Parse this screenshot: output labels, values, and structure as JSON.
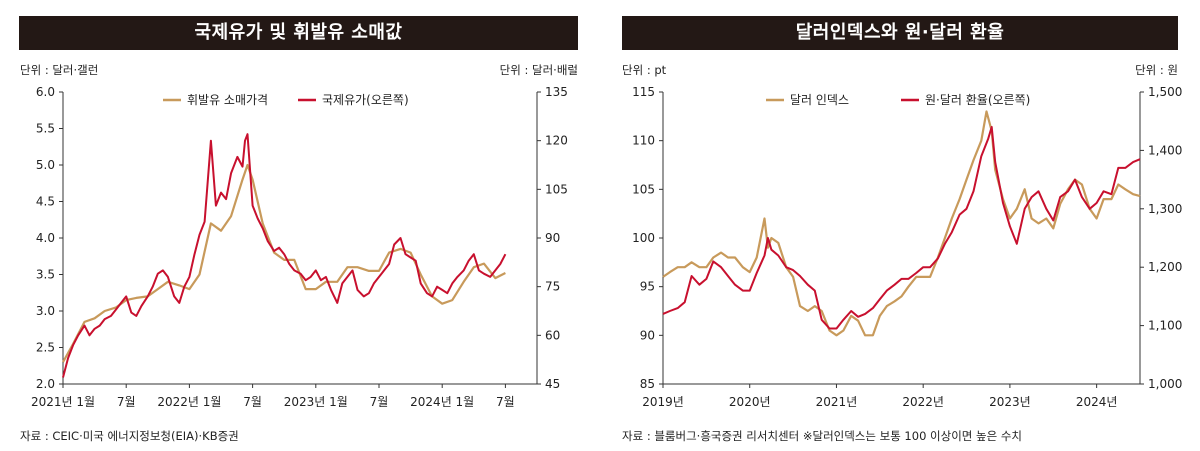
{
  "left": {
    "title": "국제유가 및 휘발유 소매값",
    "unit_left": "단위 : 달러·갤런",
    "unit_right": "단위 : 달러·배럴",
    "source": "자료 : CEIC·미국 에너지정보청(EIA)·KB증권",
    "colors": {
      "gold": "#c89a5b",
      "red": "#c8102e"
    }
  },
  "right": {
    "title": "달러인덱스와 원·달러 환율",
    "unit_left": "단위 : pt",
    "unit_right": "단위 : 원",
    "source": "자료 : 블룸버그·흥국증권 리서치센터 ※달러인덱스는 보통 100 이상이면 높은 수치",
    "colors": {
      "gold": "#c89a5b",
      "red": "#c8102e"
    }
  },
  "chart_data": [
    {
      "type": "line",
      "title": "국제유가 및 휘발유 소매값",
      "x_ticks": [
        "2021년 1월",
        "7월",
        "2022년 1월",
        "7월",
        "2023년 1월",
        "7월",
        "2024년 1월",
        "7월"
      ],
      "y_left": {
        "min": 2.0,
        "max": 6.0,
        "ticks": [
          "2.0",
          "2.5",
          "3.0",
          "3.5",
          "4.0",
          "4.5",
          "5.0",
          "5.5",
          "6.0"
        ],
        "unit": "달러·갤런"
      },
      "y_right": {
        "min": 45,
        "max": 135,
        "ticks": [
          "45",
          "60",
          "75",
          "90",
          "105",
          "120",
          "135"
        ],
        "unit": "달러·배럴"
      },
      "legend_position": "top-center",
      "series": [
        {
          "name": "휘발유 소매가격",
          "axis": "left",
          "color": "#c89a5b",
          "x": [
            2021.0,
            2021.08,
            2021.17,
            2021.25,
            2021.33,
            2021.42,
            2021.5,
            2021.58,
            2021.67,
            2021.75,
            2021.83,
            2021.92,
            2022.0,
            2022.08,
            2022.17,
            2022.25,
            2022.33,
            2022.42,
            2022.46,
            2022.5,
            2022.58,
            2022.67,
            2022.75,
            2022.83,
            2022.92,
            2023.0,
            2023.08,
            2023.17,
            2023.25,
            2023.33,
            2023.42,
            2023.5,
            2023.58,
            2023.67,
            2023.75,
            2023.83,
            2023.92,
            2024.0,
            2024.08,
            2024.17,
            2024.25,
            2024.33,
            2024.42,
            2024.5
          ],
          "y": [
            2.3,
            2.55,
            2.85,
            2.9,
            3.0,
            3.05,
            3.15,
            3.18,
            3.2,
            3.3,
            3.4,
            3.35,
            3.3,
            3.5,
            4.2,
            4.1,
            4.3,
            4.8,
            5.0,
            4.8,
            4.2,
            3.8,
            3.7,
            3.7,
            3.3,
            3.3,
            3.4,
            3.4,
            3.6,
            3.6,
            3.55,
            3.55,
            3.8,
            3.85,
            3.8,
            3.5,
            3.2,
            3.1,
            3.15,
            3.4,
            3.6,
            3.65,
            3.45,
            3.52
          ]
        },
        {
          "name": "국제유가(오른쪽)",
          "axis": "right",
          "color": "#c8102e",
          "x": [
            2021.0,
            2021.04,
            2021.08,
            2021.12,
            2021.17,
            2021.21,
            2021.25,
            2021.29,
            2021.33,
            2021.38,
            2021.42,
            2021.46,
            2021.5,
            2021.54,
            2021.58,
            2021.62,
            2021.67,
            2021.71,
            2021.75,
            2021.79,
            2021.83,
            2021.88,
            2021.92,
            2021.96,
            2022.0,
            2022.04,
            2022.08,
            2022.12,
            2022.17,
            2022.19,
            2022.21,
            2022.25,
            2022.29,
            2022.33,
            2022.38,
            2022.42,
            2022.44,
            2022.46,
            2022.5,
            2022.54,
            2022.58,
            2022.62,
            2022.67,
            2022.71,
            2022.75,
            2022.79,
            2022.83,
            2022.88,
            2022.92,
            2022.96,
            2023.0,
            2023.04,
            2023.08,
            2023.12,
            2023.17,
            2023.21,
            2023.25,
            2023.29,
            2023.33,
            2023.38,
            2023.42,
            2023.46,
            2023.5,
            2023.54,
            2023.58,
            2023.62,
            2023.67,
            2023.71,
            2023.75,
            2023.79,
            2023.83,
            2023.88,
            2023.92,
            2023.96,
            2024.0,
            2024.04,
            2024.08,
            2024.12,
            2024.17,
            2024.21,
            2024.25,
            2024.29,
            2024.33,
            2024.38,
            2024.42,
            2024.46,
            2024.5
          ],
          "y": [
            47,
            53,
            57,
            60,
            63,
            60,
            62,
            63,
            65,
            66,
            68,
            70,
            72,
            67,
            66,
            69,
            72,
            75,
            79,
            80,
            78,
            72,
            70,
            75,
            78,
            85,
            91,
            95,
            120,
            110,
            100,
            104,
            102,
            110,
            115,
            112,
            120,
            122,
            100,
            96,
            93,
            89,
            86,
            87,
            85,
            82,
            80,
            79,
            77,
            78,
            80,
            77,
            78,
            74,
            70,
            76,
            78,
            80,
            74,
            72,
            73,
            76,
            78,
            80,
            82,
            88,
            90,
            85,
            84,
            83,
            76,
            73,
            72,
            75,
            74,
            73,
            76,
            78,
            80,
            83,
            85,
            80,
            79,
            78,
            80,
            82,
            85
          ]
        }
      ]
    },
    {
      "type": "line",
      "title": "달러인덱스와 원·달러 환율",
      "x_ticks": [
        "2019년",
        "2020년",
        "2021년",
        "2022년",
        "2023년",
        "2024년"
      ],
      "y_left": {
        "min": 85,
        "max": 115,
        "ticks": [
          "85",
          "90",
          "95",
          "100",
          "105",
          "110",
          "115"
        ],
        "unit": "pt"
      },
      "y_right": {
        "min": 1000,
        "max": 1500,
        "ticks": [
          "1,000",
          "1,100",
          "1,200",
          "1,300",
          "1,400",
          "1,500"
        ],
        "unit": "원"
      },
      "legend_position": "top-center",
      "series": [
        {
          "name": "달러 인덱스",
          "axis": "left",
          "color": "#c89a5b",
          "x": [
            2019.0,
            2019.08,
            2019.17,
            2019.25,
            2019.33,
            2019.42,
            2019.5,
            2019.58,
            2019.67,
            2019.75,
            2019.83,
            2019.92,
            2020.0,
            2020.08,
            2020.17,
            2020.21,
            2020.25,
            2020.33,
            2020.42,
            2020.5,
            2020.58,
            2020.67,
            2020.75,
            2020.83,
            2020.92,
            2021.0,
            2021.08,
            2021.17,
            2021.25,
            2021.33,
            2021.42,
            2021.5,
            2021.58,
            2021.67,
            2021.75,
            2021.83,
            2021.92,
            2022.0,
            2022.08,
            2022.17,
            2022.25,
            2022.33,
            2022.42,
            2022.5,
            2022.58,
            2022.67,
            2022.73,
            2022.79,
            2022.83,
            2022.92,
            2023.0,
            2023.08,
            2023.17,
            2023.25,
            2023.33,
            2023.42,
            2023.5,
            2023.58,
            2023.67,
            2023.75,
            2023.83,
            2023.92,
            2024.0,
            2024.08,
            2024.17,
            2024.25,
            2024.33,
            2024.42,
            2024.5
          ],
          "y": [
            96,
            96.5,
            97,
            97,
            97.5,
            97,
            97,
            98,
            98.5,
            98,
            98,
            97,
            96.5,
            98,
            102,
            99,
            100,
            99.5,
            97,
            96,
            93,
            92.5,
            93,
            92.5,
            90.5,
            90,
            90.5,
            92,
            91.5,
            90,
            90,
            92,
            93,
            93.5,
            94,
            95,
            96,
            96,
            96,
            98,
            100,
            102,
            104,
            106,
            108,
            110,
            113,
            111,
            107,
            104,
            102,
            103,
            105,
            102,
            101.5,
            102,
            101,
            103.5,
            105,
            106,
            105.5,
            103,
            102,
            104,
            104,
            105.5,
            105,
            104.5,
            104.3
          ]
        },
        {
          "name": "원·달러 환율(오른쪽)",
          "axis": "right",
          "color": "#c8102e",
          "x": [
            2019.0,
            2019.08,
            2019.17,
            2019.25,
            2019.33,
            2019.42,
            2019.5,
            2019.58,
            2019.67,
            2019.75,
            2019.83,
            2019.92,
            2020.0,
            2020.08,
            2020.17,
            2020.21,
            2020.25,
            2020.33,
            2020.42,
            2020.5,
            2020.58,
            2020.67,
            2020.75,
            2020.83,
            2020.92,
            2021.0,
            2021.08,
            2021.17,
            2021.25,
            2021.33,
            2021.42,
            2021.5,
            2021.58,
            2021.67,
            2021.75,
            2021.83,
            2021.92,
            2022.0,
            2022.08,
            2022.17,
            2022.25,
            2022.33,
            2022.42,
            2022.5,
            2022.58,
            2022.67,
            2022.75,
            2022.79,
            2022.83,
            2022.92,
            2023.0,
            2023.08,
            2023.17,
            2023.25,
            2023.33,
            2023.42,
            2023.5,
            2023.58,
            2023.67,
            2023.75,
            2023.83,
            2023.92,
            2024.0,
            2024.08,
            2024.17,
            2024.25,
            2024.33,
            2024.42,
            2024.5
          ],
          "y": [
            1120,
            1125,
            1130,
            1140,
            1185,
            1170,
            1180,
            1210,
            1200,
            1185,
            1170,
            1160,
            1160,
            1190,
            1220,
            1250,
            1230,
            1220,
            1200,
            1195,
            1185,
            1170,
            1160,
            1110,
            1095,
            1095,
            1110,
            1125,
            1115,
            1120,
            1130,
            1145,
            1160,
            1170,
            1180,
            1180,
            1190,
            1200,
            1200,
            1215,
            1240,
            1260,
            1290,
            1300,
            1330,
            1390,
            1420,
            1440,
            1380,
            1310,
            1270,
            1240,
            1300,
            1320,
            1330,
            1300,
            1280,
            1320,
            1330,
            1350,
            1320,
            1300,
            1310,
            1330,
            1325,
            1370,
            1370,
            1380,
            1385
          ]
        }
      ]
    }
  ]
}
